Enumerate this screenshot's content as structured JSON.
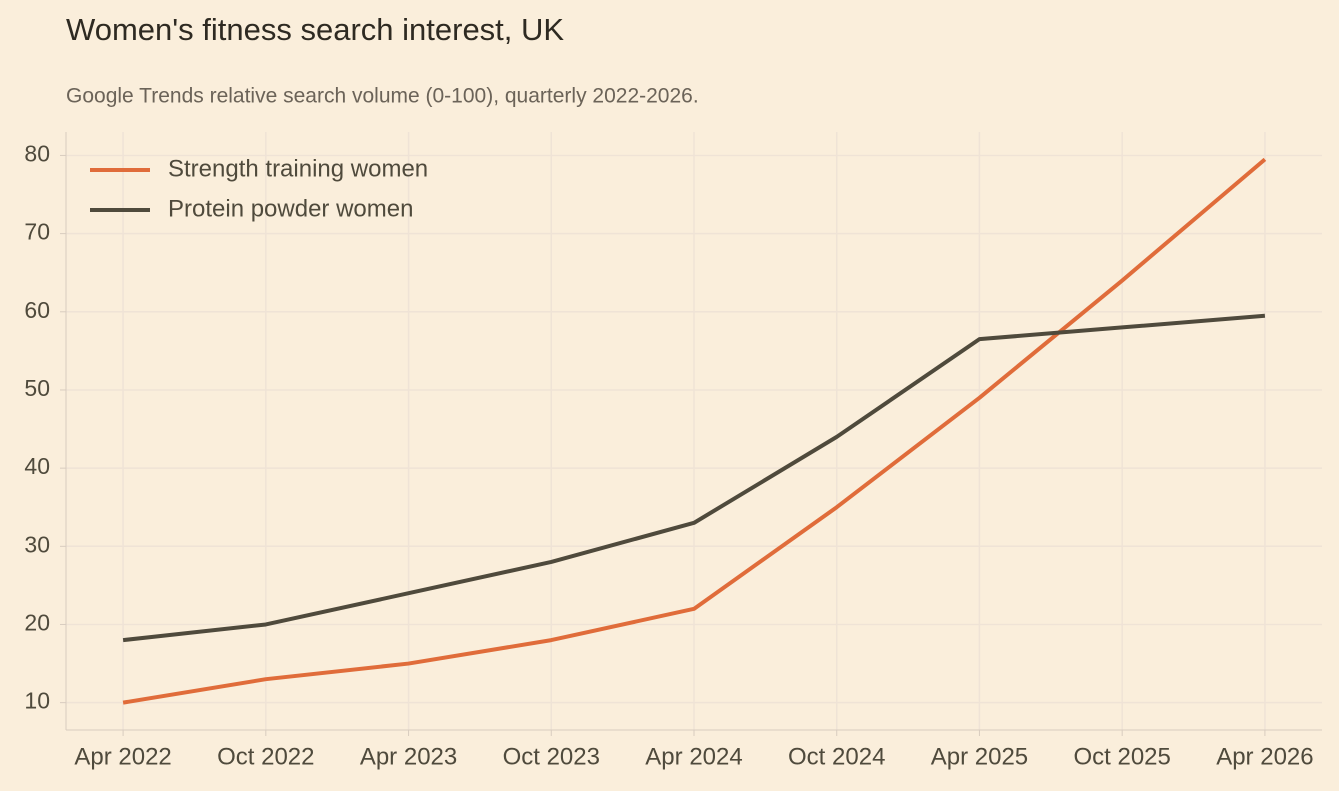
{
  "chart_data": {
    "type": "line",
    "title": "Women's fitness search interest, UK",
    "subtitle": "Google Trends relative search volume (0-100), quarterly 2022-2026.",
    "categories": [
      "Apr 2022",
      "Oct 2022",
      "Apr 2023",
      "Oct 2023",
      "Apr 2024",
      "Oct 2024",
      "Apr 2025",
      "Oct 2025",
      "Apr 2026"
    ],
    "series": [
      {
        "name": "Strength training women",
        "color": "#e06c3a",
        "values": [
          10,
          13,
          15,
          18,
          22,
          35,
          49,
          64,
          79.5
        ]
      },
      {
        "name": "Protein powder women",
        "color": "#4f4a3c",
        "values": [
          18,
          20,
          24,
          28,
          33,
          44,
          56.5,
          58,
          59.5
        ]
      }
    ],
    "ylim": [
      6.5,
      83
    ],
    "yticks": [
      10,
      20,
      30,
      40,
      50,
      60,
      70,
      80
    ],
    "grid": true,
    "legend": "upper left"
  }
}
